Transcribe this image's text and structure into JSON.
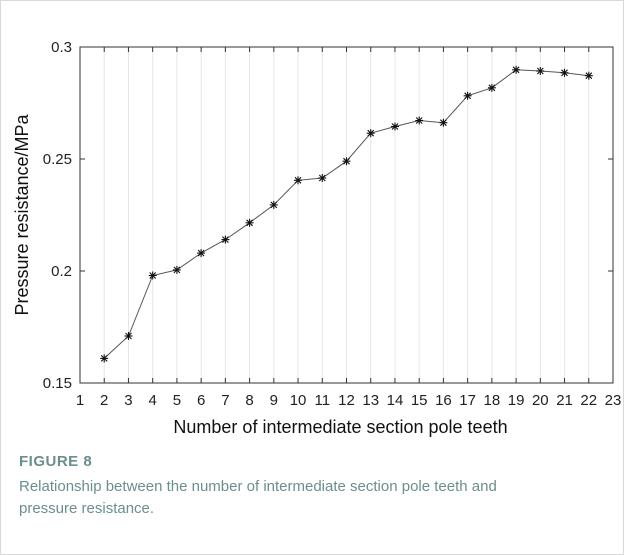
{
  "figure": {
    "label": "FIGURE 8",
    "caption": "Relationship between the number of intermediate section pole teeth and pressure resistance."
  },
  "chart_data": {
    "type": "line",
    "title": "",
    "xlabel": "Number of intermediate section pole teeth",
    "ylabel": "Pressure resistance/MPa",
    "xlim": [
      1,
      23
    ],
    "ylim": [
      0.15,
      0.3
    ],
    "xticks": [
      1,
      2,
      3,
      4,
      5,
      6,
      7,
      8,
      9,
      10,
      11,
      12,
      13,
      14,
      15,
      16,
      17,
      18,
      19,
      20,
      21,
      22,
      23
    ],
    "yticks": [
      0.15,
      0.2,
      0.25,
      0.3
    ],
    "ytick_labels": [
      "0.15",
      "0.2",
      "0.25",
      "0.3"
    ],
    "grid": "vertical",
    "marker": "asterisk",
    "line_color": "#555555",
    "x": [
      2,
      3,
      4,
      5,
      6,
      7,
      8,
      9,
      10,
      11,
      12,
      13,
      14,
      15,
      16,
      17,
      18,
      19,
      20,
      21,
      22
    ],
    "y": [
      0.161,
      0.171,
      0.198,
      0.2005,
      0.208,
      0.214,
      0.2215,
      0.2295,
      0.2405,
      0.2415,
      0.249,
      0.2615,
      0.2645,
      0.2672,
      0.2662,
      0.2782,
      0.2818,
      0.2898,
      0.2893,
      0.2885,
      0.2872
    ]
  }
}
